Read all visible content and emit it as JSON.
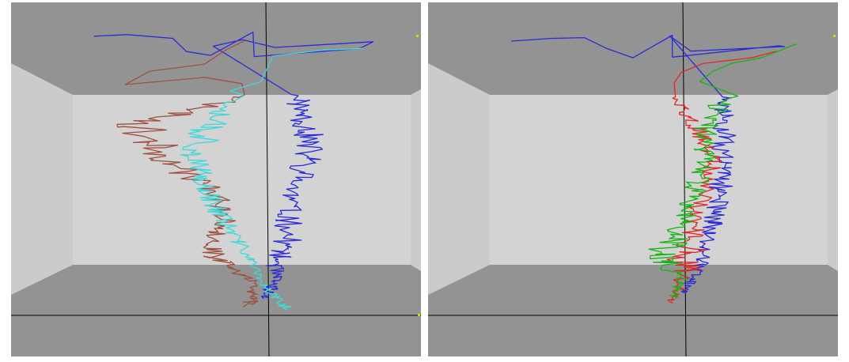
{
  "colors": {
    "ceiling": "#939393",
    "floor": "#939393",
    "back_wall": "#d3d3d3",
    "side_wall": "#cccccc",
    "axis_line": "#000000",
    "marker": "#d8d800"
  },
  "panels": [
    {
      "id": "left",
      "trajectories": [
        {
          "color": "#2a2ad8",
          "icon": "trajectory-blue"
        },
        {
          "color": "#a05040",
          "icon": "trajectory-brown"
        },
        {
          "color": "#40d8d8",
          "icon": "trajectory-cyan"
        }
      ]
    },
    {
      "id": "right",
      "trajectories": [
        {
          "color": "#2a2ad8",
          "icon": "trajectory-blue"
        },
        {
          "color": "#e02828",
          "icon": "trajectory-red"
        },
        {
          "color": "#18b418",
          "icon": "trajectory-green"
        }
      ]
    }
  ]
}
